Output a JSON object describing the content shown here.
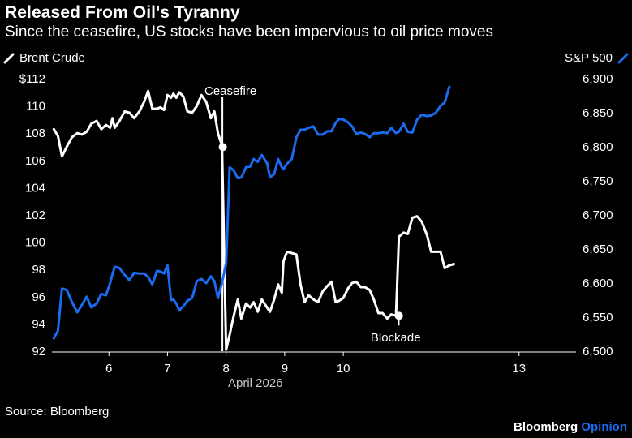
{
  "header": {
    "title": "Released From Oil's Tyranny",
    "subtitle": "Since the ceasefire, US stocks have been impervious to oil price moves"
  },
  "footer": {
    "source": "Source: Bloomberg",
    "brand": "Bloomberg",
    "brand_accent": "Opinion"
  },
  "colors": {
    "background": "#000000",
    "brent": "#ffffff",
    "sp500": "#1a6bf0"
  },
  "chart_data": {
    "type": "line",
    "title": "Released From Oil's Tyranny",
    "subtitle": "Since the ceasefire, US stocks have been impervious to oil price moves",
    "xlabel": "April 2026",
    "x_domain": [
      5,
      14
    ],
    "x_ticks": [
      {
        "value": 6,
        "label": "6"
      },
      {
        "value": 7,
        "label": "7"
      },
      {
        "value": 8,
        "label": "8"
      },
      {
        "value": 9,
        "label": "9"
      },
      {
        "value": 10,
        "label": "10"
      },
      {
        "value": 13,
        "label": "13"
      }
    ],
    "left_axis": {
      "label": "Brent Crude",
      "ylim": [
        92,
        112
      ],
      "ticks": [
        {
          "value": 112,
          "label": "$112"
        },
        {
          "value": 110,
          "label": "110"
        },
        {
          "value": 108,
          "label": "108"
        },
        {
          "value": 106,
          "label": "106"
        },
        {
          "value": 104,
          "label": "104"
        },
        {
          "value": 102,
          "label": "102"
        },
        {
          "value": 100,
          "label": "100"
        },
        {
          "value": 98,
          "label": "98"
        },
        {
          "value": 96,
          "label": "96"
        },
        {
          "value": 94,
          "label": "94"
        },
        {
          "value": 92,
          "label": "92"
        }
      ]
    },
    "right_axis": {
      "label": "S&P 500",
      "ylim": [
        6500,
        6900
      ],
      "ticks": [
        {
          "value": 6900,
          "label": "6,900"
        },
        {
          "value": 6850,
          "label": "6,850"
        },
        {
          "value": 6800,
          "label": "6,800"
        },
        {
          "value": 6750,
          "label": "6,750"
        },
        {
          "value": 6700,
          "label": "6,700"
        },
        {
          "value": 6650,
          "label": "6,650"
        },
        {
          "value": 6600,
          "label": "6,600"
        },
        {
          "value": 6550,
          "label": "6,550"
        },
        {
          "value": 6500,
          "label": "6,500"
        }
      ]
    },
    "series": [
      {
        "name": "Brent Crude",
        "axis": "left",
        "color": "#ffffff",
        "points": [
          [
            5.06,
            108.3
          ],
          [
            5.13,
            107.8
          ],
          [
            5.2,
            106.3
          ],
          [
            5.28,
            107.0
          ],
          [
            5.37,
            107.7
          ],
          [
            5.46,
            108.0
          ],
          [
            5.54,
            107.9
          ],
          [
            5.62,
            108.1
          ],
          [
            5.7,
            108.7
          ],
          [
            5.79,
            108.9
          ],
          [
            5.87,
            108.3
          ],
          [
            5.95,
            108.6
          ],
          [
            6.02,
            108.4
          ],
          [
            6.06,
            109.1
          ],
          [
            6.1,
            108.4
          ],
          [
            6.18,
            108.9
          ],
          [
            6.27,
            109.6
          ],
          [
            6.35,
            109.5
          ],
          [
            6.43,
            109.1
          ],
          [
            6.52,
            109.6
          ],
          [
            6.6,
            110.3
          ],
          [
            6.67,
            111.1
          ],
          [
            6.74,
            109.8
          ],
          [
            6.82,
            109.8
          ],
          [
            6.88,
            109.9
          ],
          [
            6.94,
            109.7
          ],
          [
            7.0,
            110.8
          ],
          [
            7.06,
            110.6
          ],
          [
            7.1,
            110.9
          ],
          [
            7.15,
            110.6
          ],
          [
            7.2,
            111.0
          ],
          [
            7.27,
            110.7
          ],
          [
            7.34,
            109.6
          ],
          [
            7.42,
            109.5
          ],
          [
            7.5,
            110.0
          ],
          [
            7.58,
            110.8
          ],
          [
            7.66,
            110.3
          ],
          [
            7.74,
            109.1
          ],
          [
            7.8,
            109.6
          ],
          [
            7.86,
            108.0
          ],
          [
            7.93,
            107.1
          ],
          [
            8.0,
            92.1
          ],
          [
            8.06,
            93.2
          ],
          [
            8.13,
            94.6
          ],
          [
            8.2,
            95.8
          ],
          [
            8.26,
            94.4
          ],
          [
            8.34,
            95.5
          ],
          [
            8.41,
            95.2
          ],
          [
            8.47,
            95.6
          ],
          [
            8.54,
            94.9
          ],
          [
            8.61,
            95.8
          ],
          [
            8.7,
            95.2
          ],
          [
            8.75,
            94.9
          ],
          [
            8.82,
            95.8
          ],
          [
            8.89,
            96.9
          ],
          [
            8.95,
            96.3
          ],
          [
            8.98,
            98.6
          ],
          [
            9.04,
            99.3
          ],
          [
            9.12,
            99.2
          ],
          [
            9.2,
            99.1
          ],
          [
            9.27,
            96.9
          ],
          [
            9.34,
            95.6
          ],
          [
            9.41,
            96.1
          ],
          [
            9.49,
            95.8
          ],
          [
            9.57,
            95.6
          ],
          [
            9.65,
            96.4
          ],
          [
            9.73,
            96.8
          ],
          [
            9.8,
            97.1
          ],
          [
            9.87,
            95.6
          ],
          [
            9.93,
            95.7
          ],
          [
            10.0,
            95.9
          ],
          [
            10.08,
            96.6
          ],
          [
            10.15,
            97.0
          ],
          [
            10.22,
            97.1
          ],
          [
            10.3,
            96.7
          ],
          [
            10.37,
            96.7
          ],
          [
            10.45,
            96.5
          ],
          [
            10.52,
            95.8
          ],
          [
            10.6,
            94.8
          ],
          [
            10.67,
            94.8
          ],
          [
            10.75,
            94.4
          ],
          [
            10.82,
            94.7
          ],
          [
            10.9,
            94.6
          ],
          [
            10.95,
            100.4
          ],
          [
            11.03,
            100.7
          ],
          [
            11.1,
            100.6
          ],
          [
            11.18,
            101.8
          ],
          [
            11.26,
            101.9
          ],
          [
            11.34,
            101.5
          ],
          [
            11.43,
            100.5
          ],
          [
            11.5,
            99.3
          ],
          [
            11.58,
            99.3
          ],
          [
            11.66,
            99.3
          ],
          [
            11.73,
            98.1
          ],
          [
            11.81,
            98.3
          ],
          [
            11.89,
            98.4
          ]
        ],
        "annotation": {
          "label": "Blockade",
          "x": 10.95,
          "y": 94.6
        }
      },
      {
        "name": "S&P 500",
        "axis": "right",
        "color": "#1a6bf0",
        "points": [
          [
            5.06,
            6519
          ],
          [
            5.13,
            6530
          ],
          [
            5.2,
            6592
          ],
          [
            5.28,
            6590
          ],
          [
            5.37,
            6572
          ],
          [
            5.46,
            6557
          ],
          [
            5.54,
            6568
          ],
          [
            5.62,
            6580
          ],
          [
            5.7,
            6564
          ],
          [
            5.79,
            6570
          ],
          [
            5.87,
            6584
          ],
          [
            5.95,
            6582
          ],
          [
            6.02,
            6600
          ],
          [
            6.06,
            6613
          ],
          [
            6.1,
            6624
          ],
          [
            6.18,
            6622
          ],
          [
            6.27,
            6612
          ],
          [
            6.35,
            6604
          ],
          [
            6.43,
            6615
          ],
          [
            6.52,
            6614
          ],
          [
            6.6,
            6614
          ],
          [
            6.67,
            6609
          ],
          [
            6.74,
            6598
          ],
          [
            6.82,
            6618
          ],
          [
            6.88,
            6617
          ],
          [
            6.94,
            6614
          ],
          [
            7.0,
            6626
          ],
          [
            7.06,
            6575
          ],
          [
            7.1,
            6576
          ],
          [
            7.15,
            6570
          ],
          [
            7.2,
            6560
          ],
          [
            7.27,
            6566
          ],
          [
            7.34,
            6574
          ],
          [
            7.42,
            6578
          ],
          [
            7.5,
            6603
          ],
          [
            7.58,
            6606
          ],
          [
            7.66,
            6600
          ],
          [
            7.74,
            6610
          ],
          [
            7.8,
            6603
          ],
          [
            7.86,
            6578
          ],
          [
            7.93,
            6600
          ],
          [
            8.0,
            6629
          ],
          [
            8.06,
            6770
          ],
          [
            8.13,
            6765
          ],
          [
            8.2,
            6754
          ],
          [
            8.26,
            6755
          ],
          [
            8.34,
            6770
          ],
          [
            8.41,
            6771
          ],
          [
            8.47,
            6782
          ],
          [
            8.54,
            6778
          ],
          [
            8.61,
            6788
          ],
          [
            8.7,
            6776
          ],
          [
            8.75,
            6755
          ],
          [
            8.82,
            6760
          ],
          [
            8.89,
            6782
          ],
          [
            8.95,
            6770
          ],
          [
            8.98,
            6767
          ],
          [
            9.04,
            6775
          ],
          [
            9.12,
            6782
          ],
          [
            9.2,
            6814
          ],
          [
            9.27,
            6825
          ],
          [
            9.34,
            6825
          ],
          [
            9.41,
            6828
          ],
          [
            9.49,
            6830
          ],
          [
            9.57,
            6818
          ],
          [
            9.65,
            6818
          ],
          [
            9.73,
            6823
          ],
          [
            9.8,
            6823
          ],
          [
            9.87,
            6835
          ],
          [
            9.93,
            6841
          ],
          [
            10.0,
            6840
          ],
          [
            10.08,
            6836
          ],
          [
            10.15,
            6830
          ],
          [
            10.22,
            6819
          ],
          [
            10.3,
            6821
          ],
          [
            10.37,
            6819
          ],
          [
            10.45,
            6814
          ],
          [
            10.52,
            6820
          ],
          [
            10.6,
            6820
          ],
          [
            10.67,
            6821
          ],
          [
            10.75,
            6820
          ],
          [
            10.82,
            6828
          ],
          [
            10.9,
            6820
          ],
          [
            10.95,
            6822
          ],
          [
            11.03,
            6834
          ],
          [
            11.1,
            6822
          ],
          [
            11.18,
            6821
          ],
          [
            11.26,
            6840
          ],
          [
            11.34,
            6847
          ],
          [
            11.43,
            6845
          ],
          [
            11.5,
            6846
          ],
          [
            11.58,
            6850
          ],
          [
            11.66,
            6860
          ],
          [
            11.73,
            6865
          ],
          [
            11.81,
            6888
          ]
        ]
      }
    ],
    "event": {
      "label": "Ceasefire",
      "x": 7.93,
      "y": 107.1
    }
  }
}
